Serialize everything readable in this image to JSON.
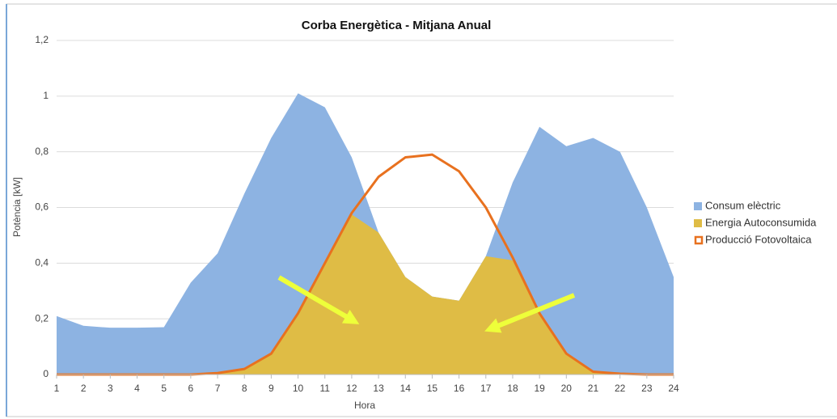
{
  "chart_data": {
    "type": "area",
    "title": "Corba Energètica - Mitjana Anual",
    "x_label": "Hora",
    "y_label": "Potència [kW]",
    "x": [
      1,
      2,
      3,
      4,
      5,
      6,
      7,
      8,
      9,
      10,
      11,
      12,
      13,
      14,
      15,
      16,
      17,
      18,
      19,
      20,
      21,
      22,
      23,
      24
    ],
    "xlim": [
      1,
      24
    ],
    "xticks": [
      1,
      2,
      3,
      4,
      5,
      6,
      7,
      8,
      9,
      10,
      11,
      12,
      13,
      14,
      15,
      16,
      17,
      18,
      19,
      20,
      21,
      22,
      23,
      24
    ],
    "ylim": [
      0,
      1.2
    ],
    "yticks": [
      0,
      {
        "value": 0.2,
        "label": "0,2"
      },
      {
        "value": 0.4,
        "label": "0,4"
      },
      {
        "value": 0.6,
        "label": "0,6"
      },
      {
        "value": 0.8,
        "label": "0,8"
      },
      1,
      {
        "value": 1.2,
        "label": "1,2"
      }
    ],
    "grid": true,
    "legend": "right",
    "series": [
      {
        "name": "Consum elèctric",
        "type": "area",
        "color": "#8db3e2",
        "values": [
          0.21,
          0.175,
          0.168,
          0.168,
          0.17,
          0.33,
          0.435,
          0.65,
          0.85,
          1.01,
          0.96,
          0.78,
          0.51,
          0.35,
          0.28,
          0.265,
          0.425,
          0.69,
          0.89,
          0.82,
          0.85,
          0.8,
          0.6,
          0.35
        ]
      },
      {
        "name": "Energia Autoconsumida",
        "type": "area",
        "color": "#dfbc45",
        "values": [
          0,
          0,
          0,
          0,
          0,
          0,
          0.005,
          0.02,
          0.075,
          0.22,
          0.4,
          0.575,
          0.51,
          0.35,
          0.28,
          0.265,
          0.425,
          0.41,
          0.22,
          0.075,
          0.01,
          0.003,
          0,
          0
        ]
      },
      {
        "name": "Producció Fotovoltaica",
        "type": "line",
        "color": "#e8711f",
        "values": [
          0,
          0,
          0,
          0,
          0,
          0,
          0.005,
          0.02,
          0.075,
          0.22,
          0.4,
          0.58,
          0.71,
          0.78,
          0.79,
          0.73,
          0.6,
          0.42,
          0.22,
          0.075,
          0.01,
          0.003,
          0,
          0
        ]
      }
    ]
  }
}
